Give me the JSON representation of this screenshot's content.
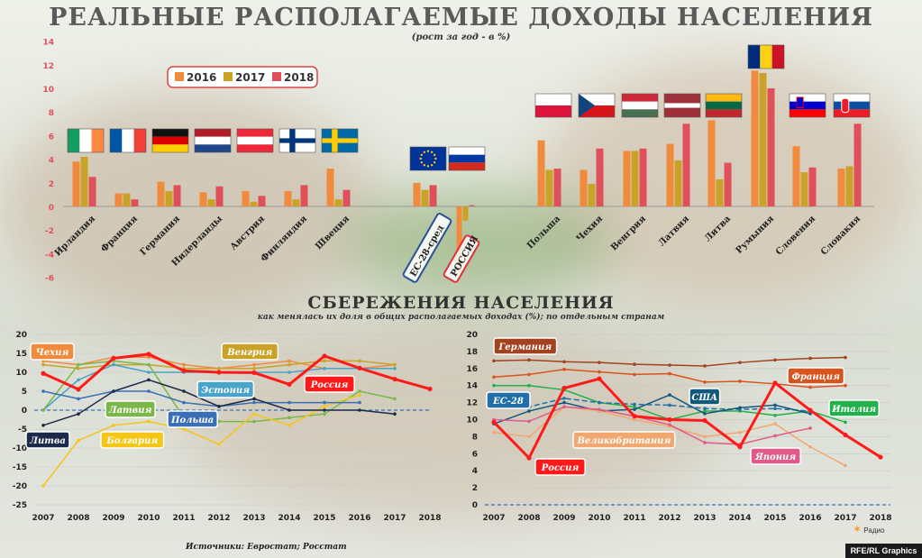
{
  "title": "РЕАЛЬНЫЕ РАСПОЛАГАЕМЫЕ ДОХОДЫ НАСЕЛЕНИЯ",
  "subtitle": "(рост за год - в %)",
  "savings_title": "СБЕРЕЖЕНИЯ НАСЕЛЕНИЯ",
  "savings_subtitle": "как менялась их доля в общих располагаемых доходах (%); по отдельным странам",
  "source": "Источники: Евростат; Росстат",
  "credit": "RFE/RL Graphics",
  "radio_label": "Радио",
  "colors": {
    "y2016": "#f08a3c",
    "y2017": "#c9a227",
    "y2018": "#e0505a"
  },
  "chart_data": [
    {
      "type": "bar",
      "title": "РЕАЛЬНЫЕ РАСПОЛАГАЕМЫЕ ДОХОДЫ НАСЕЛЕНИЯ",
      "subtitle": "(рост за год - в %)",
      "ylim": [
        -6,
        14
      ],
      "yticks": [
        "14",
        "12",
        "10",
        "8",
        "6",
        "4",
        "2",
        "0",
        "-2",
        "-4",
        "-6"
      ],
      "legend_position": "top-left",
      "categories": [
        "Ирландия",
        "Франция",
        "Германия",
        "Нидерланды",
        "Австрия",
        "Финляндия",
        "Швеция",
        "ЕС-28-сред",
        "РОССИЯ",
        "Польша",
        "Чехия",
        "Венгрия",
        "Латвия",
        "Литва",
        "Румыния",
        "Словения",
        "Словакия"
      ],
      "flags": [
        "ireland",
        "france",
        "germany",
        "netherlands",
        "austria",
        "finland",
        "sweden",
        "eu",
        "russia",
        "poland",
        "czechia",
        "hungary",
        "latvia",
        "lithuania",
        "romania",
        "slovenia",
        "slovakia"
      ],
      "series": [
        {
          "name": "2016",
          "values": [
            3.8,
            1.1,
            2.1,
            1.2,
            1.3,
            1.3,
            3.2,
            2.0,
            -5.8,
            5.6,
            3.1,
            4.7,
            5.3,
            7.3,
            11.5,
            5.1,
            3.2
          ]
        },
        {
          "name": "2017",
          "values": [
            4.2,
            1.1,
            1.3,
            0.6,
            0.4,
            0.6,
            0.6,
            1.4,
            -1.2,
            3.1,
            1.9,
            4.7,
            3.9,
            2.3,
            11.3,
            2.9,
            3.4
          ]
        },
        {
          "name": "2018",
          "values": [
            2.5,
            0.6,
            1.8,
            1.7,
            0.9,
            1.8,
            1.4,
            1.8,
            0.1,
            3.2,
            4.9,
            4.9,
            7.0,
            3.7,
            10.0,
            3.3,
            7.0
          ]
        }
      ]
    },
    {
      "type": "line",
      "x": [
        "2007",
        "2008",
        "2009",
        "2010",
        "2011",
        "2012",
        "2013",
        "2014",
        "2015",
        "2016",
        "2017",
        "2018"
      ],
      "ylim": [
        -25,
        20
      ],
      "yticks": [
        "20",
        "15",
        "10",
        "5",
        "0",
        "-5",
        "-10",
        "-15",
        "-20",
        "-25"
      ],
      "series": [
        {
          "name": "Чехия",
          "color": "#f08a3c",
          "values": [
            13,
            12,
            14,
            14,
            12,
            11,
            12,
            13,
            11,
            11,
            12,
            null
          ]
        },
        {
          "name": "Венгрия",
          "color": "#c9a227",
          "values": [
            12,
            11,
            12,
            12,
            11,
            11,
            11,
            12,
            13,
            13,
            12,
            null
          ]
        },
        {
          "name": "Эстония",
          "color": "#4aa3c9",
          "values": [
            0,
            8,
            12,
            10,
            10,
            10,
            10,
            10,
            11,
            11,
            11,
            null
          ]
        },
        {
          "name": "Латвия",
          "color": "#7ab648",
          "values": [
            0,
            12,
            13,
            12,
            -2,
            -3,
            -3,
            -2,
            -1,
            5,
            3,
            null
          ]
        },
        {
          "name": "Болгария",
          "color": "#f5c518",
          "values": [
            -20,
            -8,
            -4,
            -3,
            -5,
            -9,
            -1,
            -4,
            1,
            4,
            null,
            null
          ]
        },
        {
          "name": "Польша",
          "color": "#3a6fb5",
          "values": [
            5,
            3,
            5,
            5,
            2,
            1,
            2,
            2,
            2,
            2,
            null,
            null
          ]
        },
        {
          "name": "Литва",
          "color": "#1b2a4a",
          "values": [
            -4,
            -1,
            5,
            8,
            5,
            1,
            3,
            0,
            0,
            0,
            -1,
            null
          ]
        },
        {
          "name": "Россия",
          "color": "#ff1a1a",
          "values": [
            9.7,
            5.5,
            13.7,
            14.8,
            10.4,
            10.0,
            9.9,
            6.8,
            14.3,
            11.1,
            8.2,
            5.6
          ]
        }
      ]
    },
    {
      "type": "line",
      "x": [
        "2007",
        "2008",
        "2009",
        "2010",
        "2011",
        "2012",
        "2013",
        "2014",
        "2015",
        "2016",
        "2017",
        "2018"
      ],
      "ylim": [
        0,
        20
      ],
      "yticks": [
        "20",
        "18",
        "16",
        "14",
        "12",
        "10",
        "8",
        "6",
        "4",
        "2",
        "0"
      ],
      "series": [
        {
          "name": "Германия",
          "color": "#a3421f",
          "values": [
            16.9,
            17.0,
            16.8,
            16.7,
            16.5,
            16.4,
            16.3,
            16.7,
            17.0,
            17.2,
            17.3,
            null
          ]
        },
        {
          "name": "Франция",
          "color": "#d9531e",
          "values": [
            15.0,
            15.3,
            15.9,
            15.6,
            15.3,
            15.4,
            14.4,
            14.5,
            14.2,
            13.8,
            14.0,
            null
          ]
        },
        {
          "name": "Италия",
          "color": "#22b04b",
          "values": [
            14.0,
            14.0,
            13.5,
            12.0,
            11.5,
            10.0,
            11.0,
            11.0,
            10.5,
            11.0,
            9.7,
            null
          ]
        },
        {
          "name": "ЕС-28",
          "color": "#1f6fa8",
          "values": [
            11.5,
            11.5,
            12.5,
            12.0,
            11.8,
            11.7,
            11.3,
            11.2,
            11.3,
            11.0,
            null,
            null
          ]
        },
        {
          "name": "США",
          "color": "#12587a",
          "values": [
            9.5,
            11.0,
            12.0,
            11.0,
            11.2,
            12.9,
            10.7,
            11.4,
            11.7,
            10.7,
            null,
            null
          ]
        },
        {
          "name": "Великобритания",
          "color": "#f0a870",
          "values": [
            8.5,
            8.0,
            11.5,
            11.0,
            10.0,
            9.2,
            8.0,
            8.5,
            9.5,
            6.8,
            4.6,
            null
          ]
        },
        {
          "name": "Япония",
          "color": "#e05a8a",
          "values": [
            10.0,
            9.8,
            11.5,
            11.2,
            10.4,
            9.4,
            7.3,
            7.1,
            8.1,
            9.0,
            null,
            null
          ]
        },
        {
          "name": "Россия",
          "color": "#ff1a1a",
          "values": [
            9.7,
            5.5,
            13.7,
            14.8,
            10.4,
            10.0,
            9.9,
            6.8,
            14.3,
            11.1,
            8.2,
            5.6
          ]
        }
      ]
    }
  ]
}
